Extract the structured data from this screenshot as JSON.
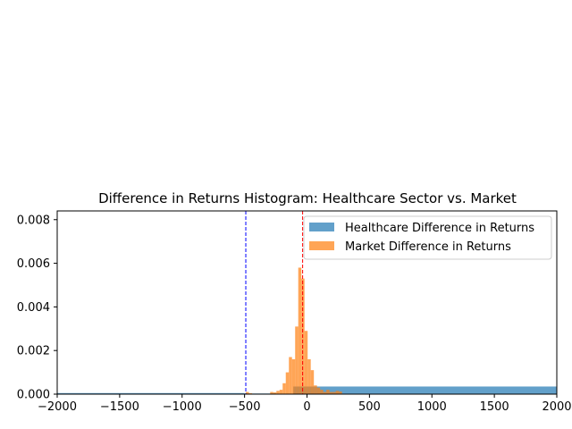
{
  "chart_data": {
    "type": "histogram",
    "title": "Difference in Returns Histogram: Healthcare Sector vs. Market",
    "xlabel": "",
    "ylabel": "",
    "xlim": [
      -2000,
      2000
    ],
    "ylim": [
      0,
      0.0084
    ],
    "x_ticks": [
      -2000,
      -1500,
      -1000,
      -500,
      0,
      500,
      1000,
      1500,
      2000
    ],
    "x_tick_labels": [
      "−2000",
      "−1500",
      "−1000",
      "−500",
      "0",
      "500",
      "1000",
      "1500",
      "2000"
    ],
    "y_ticks": [
      0,
      0.002,
      0.004,
      0.006,
      0.008
    ],
    "y_tick_labels": [
      "0.000",
      "0.002",
      "0.004",
      "0.006",
      "0.008"
    ],
    "grid": false,
    "legend_position": "top-right",
    "series": [
      {
        "name": "Healthcare Difference in Returns",
        "color": "#1f77b4",
        "opacity": 0.7,
        "bins": [
          {
            "x0": -2000,
            "x1": -500,
            "density": 5e-05
          },
          {
            "x0": -500,
            "x1": -250,
            "density": 3e-05
          },
          {
            "x0": -110,
            "x1": 100,
            "density": 0.00035
          },
          {
            "x0": 100,
            "x1": 2000,
            "density": 0.00035
          }
        ]
      },
      {
        "name": "Market Difference in Returns",
        "color": "#ff7f0e",
        "opacity": 0.7,
        "bins": [
          {
            "x0": -490,
            "x1": -465,
            "density": 0.0001
          },
          {
            "x0": -465,
            "x1": -440,
            "density": 4e-05
          },
          {
            "x0": -295,
            "x1": -270,
            "density": 0.0001
          },
          {
            "x0": -270,
            "x1": -245,
            "density": 8e-05
          },
          {
            "x0": -245,
            "x1": -220,
            "density": 0.00015
          },
          {
            "x0": -220,
            "x1": -195,
            "density": 0.0002
          },
          {
            "x0": -195,
            "x1": -170,
            "density": 0.0005
          },
          {
            "x0": -170,
            "x1": -145,
            "density": 0.001
          },
          {
            "x0": -145,
            "x1": -120,
            "density": 0.0017
          },
          {
            "x0": -120,
            "x1": -95,
            "density": 0.0016
          },
          {
            "x0": -95,
            "x1": -70,
            "density": 0.0031
          },
          {
            "x0": -70,
            "x1": -45,
            "density": 0.0058
          },
          {
            "x0": -45,
            "x1": -20,
            "density": 0.0053
          },
          {
            "x0": -20,
            "x1": 5,
            "density": 0.0029
          },
          {
            "x0": 5,
            "x1": 30,
            "density": 0.0016
          },
          {
            "x0": 30,
            "x1": 55,
            "density": 0.0011
          },
          {
            "x0": 55,
            "x1": 80,
            "density": 0.0004
          },
          {
            "x0": 80,
            "x1": 105,
            "density": 0.0003
          },
          {
            "x0": 105,
            "x1": 130,
            "density": 0.0002
          },
          {
            "x0": 130,
            "x1": 155,
            "density": 0.0001
          },
          {
            "x0": 155,
            "x1": 180,
            "density": 0.0002
          },
          {
            "x0": 180,
            "x1": 205,
            "density": 0.0001
          },
          {
            "x0": 205,
            "x1": 230,
            "density": 0.0001
          },
          {
            "x0": 230,
            "x1": 255,
            "density": 0.00015
          },
          {
            "x0": 255,
            "x1": 280,
            "density": 0.00012
          }
        ]
      }
    ],
    "reference_lines": [
      {
        "x": -490,
        "color": "#0000ff",
        "style": "dashed"
      },
      {
        "x": -35,
        "color": "#ff0000",
        "style": "dashed"
      }
    ]
  }
}
